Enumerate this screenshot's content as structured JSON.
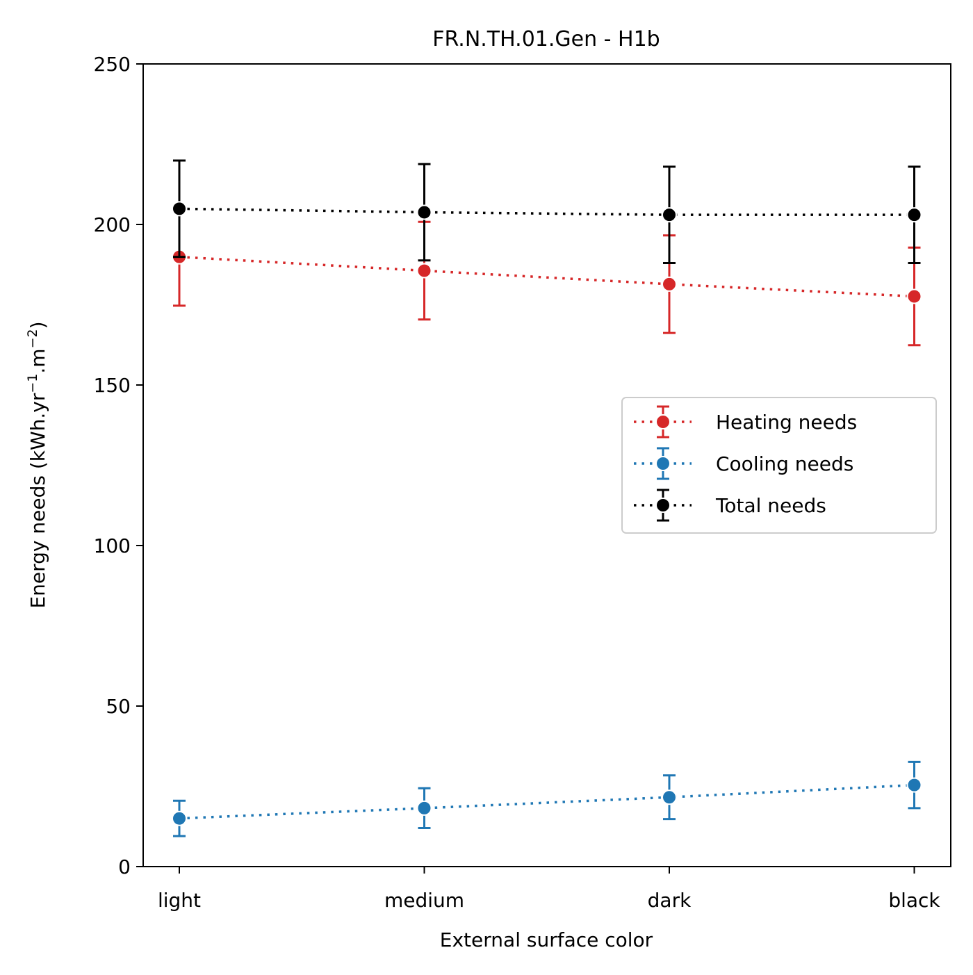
{
  "chart_data": {
    "type": "line",
    "title": "FR.N.TH.01.Gen - H1b",
    "xlabel": "External surface color",
    "ylabel_main": "Energy needs (kWh.yr",
    "ylabel_sup1": "−1",
    "ylabel_mid": ".m",
    "ylabel_sup2": "−2",
    "ylabel_end": ")",
    "categories": [
      "light",
      "medium",
      "dark",
      "black"
    ],
    "ylim": [
      0,
      250
    ],
    "yticks": [
      0,
      50,
      100,
      150,
      200,
      250
    ],
    "ytick_labels": [
      "0",
      "50",
      "100",
      "150",
      "200",
      "250"
    ],
    "grid": false,
    "legend_position": "center-right",
    "series": [
      {
        "name": "Heating needs",
        "color": "#d62728",
        "values": [
          189.9,
          185.6,
          181.4,
          177.6
        ],
        "err": [
          15.2,
          15.2,
          15.2,
          15.2
        ]
      },
      {
        "name": "Cooling needs",
        "color": "#1f77b4",
        "values": [
          15.0,
          18.2,
          21.6,
          25.4
        ],
        "err": [
          5.5,
          6.2,
          6.8,
          7.2
        ]
      },
      {
        "name": "Total needs",
        "color": "#000000",
        "values": [
          204.9,
          203.8,
          203.0,
          203.0
        ],
        "err": [
          15.0,
          15.0,
          15.0,
          15.0
        ]
      }
    ]
  }
}
